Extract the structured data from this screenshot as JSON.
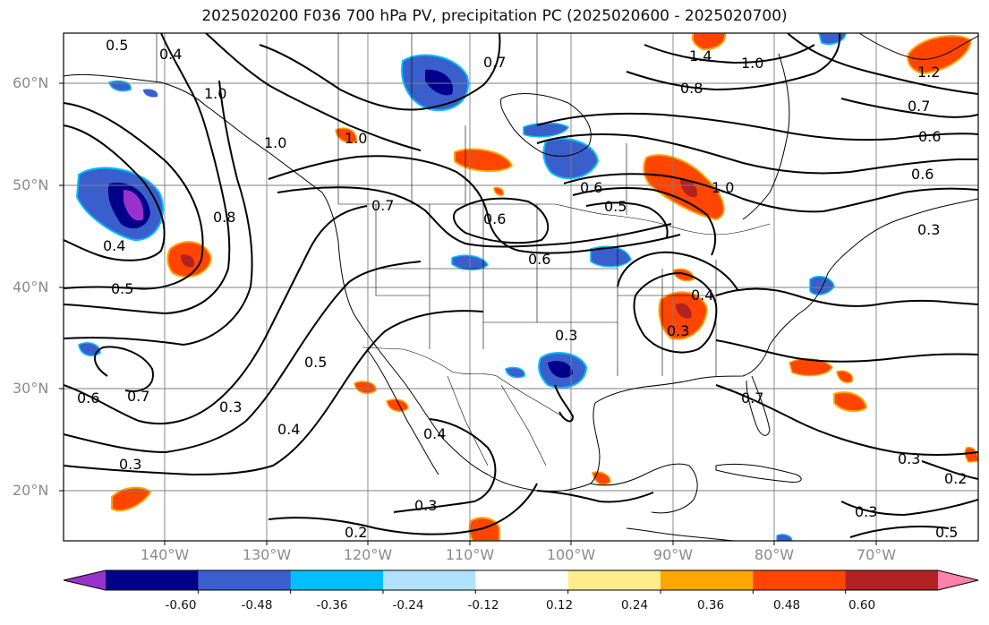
{
  "title": "2025020200 F036 700 hPa PV, precipitation PC (2025020600 - 2025020700)",
  "lat_labels": [
    "60°N",
    "50°N",
    "40°N",
    "30°N",
    "20°N"
  ],
  "lon_labels": [
    "140°W",
    "130°W",
    "120°W",
    "110°W",
    "100°W",
    "90°W",
    "80°W",
    "70°W"
  ],
  "colorbar": {
    "tick_labels": [
      "-0.60",
      "-0.48",
      "-0.36",
      "-0.24",
      "-0.12",
      "0.12",
      "0.24",
      "0.36",
      "0.48",
      "0.60"
    ],
    "colors": [
      "#9932cc",
      "#00008b",
      "#3a5fcd",
      "#00bfff",
      "#b0e2ff",
      "#ffffff",
      "#ffec8b",
      "#ffa500",
      "#ff4500",
      "#b22222",
      "#ff82ab"
    ]
  },
  "contour_labels": [
    "0.5",
    "0.4",
    "0.7",
    "1.4",
    "1.0",
    "0.8",
    "1.2",
    "0.7",
    "0.6",
    "1.0",
    "0.8",
    "1.0",
    "0.4",
    "0.5",
    "0.7",
    "0.6",
    "1.0",
    "0.6",
    "0.5",
    "0.3",
    "0.5",
    "0.4",
    "0.3",
    "0.6",
    "0.7",
    "0.3",
    "0.4",
    "0.3",
    "0.2",
    "0.7",
    "0.3",
    "0.2",
    "0.3",
    "0.6",
    "0.6",
    "0.3",
    "0.3",
    "0.4",
    "1.0",
    "0.5"
  ]
}
